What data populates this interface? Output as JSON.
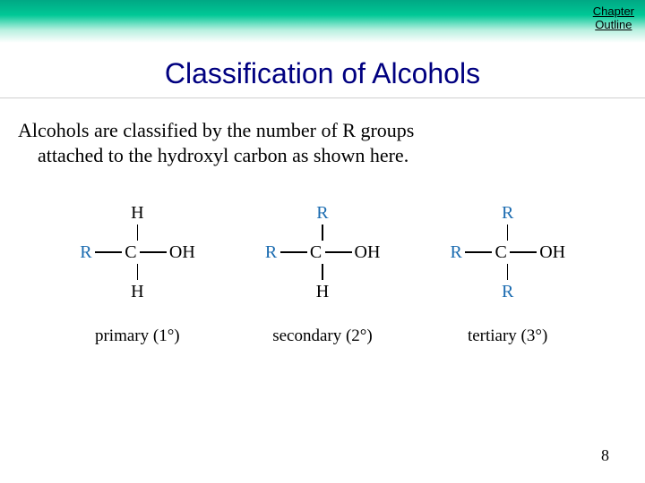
{
  "header": {
    "chapter_link_line1": "Chapter",
    "chapter_link_line2": "Outline"
  },
  "title": "Classification of Alcohols",
  "body_line1": "Alcohols are classified by the number of R groups",
  "body_line2": "attached to the hydroxyl carbon as shown here.",
  "colors": {
    "title_color": "#000080",
    "r_group_color": "#1a6bb0",
    "atom_color": "#000000",
    "header_gradient_top": "#00a884",
    "header_gradient_mid": "#00c896",
    "header_gradient_low": "#b8f0e0",
    "background": "#ffffff"
  },
  "molecules": [
    {
      "top": "H",
      "top_is_r": false,
      "left": "R",
      "center": "C",
      "right": "OH",
      "bottom": "H",
      "bottom_is_r": false,
      "caption": "primary (1°)"
    },
    {
      "top": "R",
      "top_is_r": true,
      "left": "R",
      "center": "C",
      "right": "OH",
      "bottom": "H",
      "bottom_is_r": false,
      "caption": "secondary (2°)"
    },
    {
      "top": "R",
      "top_is_r": true,
      "left": "R",
      "center": "C",
      "right": "OH",
      "bottom": "R",
      "bottom_is_r": true,
      "caption": "tertiary (3°)"
    }
  ],
  "page_number": "8"
}
